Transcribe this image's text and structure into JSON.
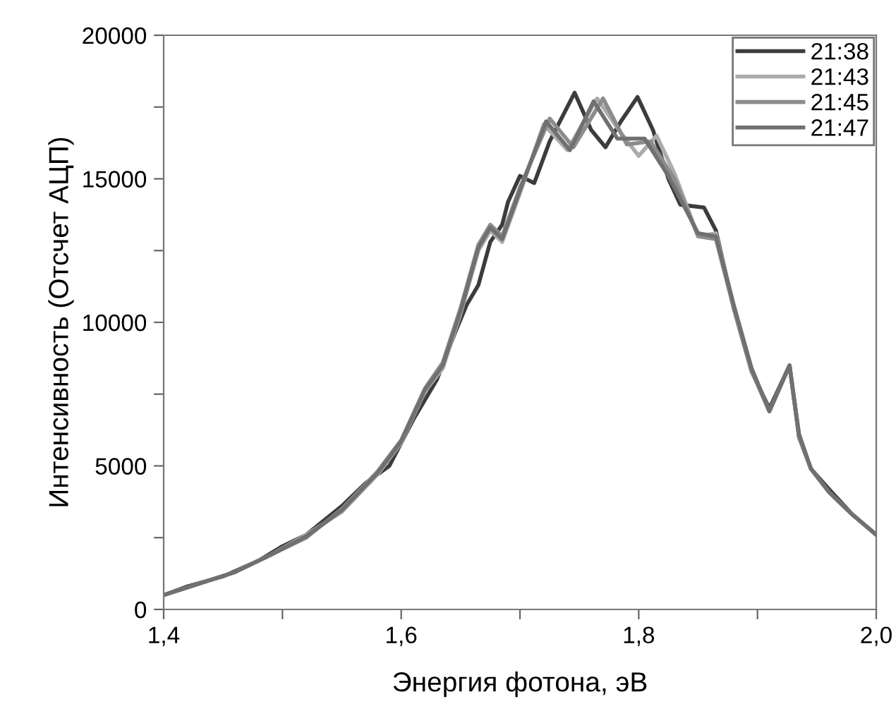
{
  "chart_data": {
    "type": "line",
    "xlabel": "Энергия фотона, эВ",
    "ylabel": "Интенсивность (Отсчет АЦП)",
    "xlim": [
      1.4,
      2.0
    ],
    "ylim": [
      0,
      20000
    ],
    "xticks": [
      {
        "value": 1.4,
        "label": "1,4"
      },
      {
        "value": 1.5,
        "label": null
      },
      {
        "value": 1.6,
        "label": "1,6"
      },
      {
        "value": 1.7,
        "label": null
      },
      {
        "value": 1.8,
        "label": "1,8"
      },
      {
        "value": 1.9,
        "label": null
      },
      {
        "value": 2.0,
        "label": "2,0"
      }
    ],
    "yticks": [
      0,
      {
        "value": 2500,
        "label": null
      },
      5000,
      {
        "value": 7500,
        "label": null
      },
      10000,
      {
        "value": 12500,
        "label": null
      },
      15000,
      {
        "value": 17500,
        "label": null
      },
      20000
    ],
    "grid": false,
    "legend": "top right",
    "marker": "none",
    "line_style": "solid",
    "series": [
      {
        "name": "21:38",
        "color": "#3c3c3c",
        "x": [
          1.4,
          1.42,
          1.45,
          1.48,
          1.5,
          1.52,
          1.55,
          1.57,
          1.59,
          1.61,
          1.63,
          1.645,
          1.655,
          1.665,
          1.675,
          1.685,
          1.69,
          1.7,
          1.712,
          1.725,
          1.746,
          1.76,
          1.772,
          1.785,
          1.799,
          1.812,
          1.825,
          1.835,
          1.855,
          1.865,
          1.88,
          1.895,
          1.91,
          1.927,
          1.935,
          1.945,
          1.96,
          1.98,
          2.0
        ],
        "values": [
          500,
          800,
          1150,
          1700,
          2200,
          2600,
          3600,
          4400,
          5000,
          6600,
          8000,
          9600,
          10600,
          11300,
          12800,
          13400,
          14200,
          15100,
          14850,
          16300,
          18000,
          16700,
          16100,
          17000,
          17850,
          16700,
          15000,
          14100,
          14000,
          13200,
          10500,
          8300,
          7000,
          8500,
          6000,
          4900,
          4200,
          3300,
          2600
        ]
      },
      {
        "name": "21:43",
        "color": "#ababab",
        "x": [
          1.4,
          1.43,
          1.46,
          1.49,
          1.52,
          1.55,
          1.58,
          1.6,
          1.62,
          1.635,
          1.65,
          1.665,
          1.675,
          1.685,
          1.7,
          1.72,
          1.74,
          1.765,
          1.785,
          1.8,
          1.815,
          1.83,
          1.85,
          1.865,
          1.88,
          1.895,
          1.91,
          1.927,
          1.935,
          1.945,
          1.96,
          1.98,
          2.0
        ],
        "values": [
          500,
          900,
          1300,
          1900,
          2600,
          3400,
          4700,
          5800,
          7600,
          8400,
          10300,
          12500,
          13200,
          12800,
          14500,
          16900,
          16000,
          17800,
          16600,
          15800,
          16500,
          15200,
          13000,
          13100,
          10600,
          8400,
          6900,
          8500,
          6100,
          4900,
          4100,
          3300,
          2600
        ]
      },
      {
        "name": "21:45",
        "color": "#8c8c8c",
        "x": [
          1.4,
          1.43,
          1.46,
          1.49,
          1.52,
          1.55,
          1.58,
          1.6,
          1.62,
          1.635,
          1.65,
          1.665,
          1.675,
          1.685,
          1.7,
          1.725,
          1.745,
          1.77,
          1.79,
          1.81,
          1.83,
          1.85,
          1.865,
          1.88,
          1.895,
          1.91,
          1.927,
          1.935,
          1.945,
          1.96,
          1.98,
          2.0
        ],
        "values": [
          500,
          900,
          1300,
          1900,
          2500,
          3500,
          4800,
          5900,
          7700,
          8600,
          10500,
          12700,
          13400,
          13000,
          14700,
          17100,
          16100,
          17800,
          16200,
          16300,
          15000,
          13000,
          12900,
          10500,
          8300,
          6900,
          8500,
          6000,
          4900,
          4100,
          3300,
          2600
        ]
      },
      {
        "name": "21:47",
        "color": "#707070",
        "x": [
          1.4,
          1.43,
          1.46,
          1.49,
          1.52,
          1.55,
          1.58,
          1.6,
          1.62,
          1.635,
          1.65,
          1.665,
          1.675,
          1.685,
          1.7,
          1.722,
          1.742,
          1.762,
          1.782,
          1.805,
          1.825,
          1.85,
          1.865,
          1.88,
          1.895,
          1.91,
          1.927,
          1.935,
          1.945,
          1.96,
          1.98,
          2.0
        ],
        "values": [
          500,
          900,
          1300,
          1900,
          2550,
          3450,
          4750,
          5850,
          7650,
          8500,
          10400,
          12600,
          13300,
          12900,
          14600,
          17000,
          16000,
          17700,
          16400,
          16400,
          15100,
          13100,
          13000,
          10600,
          8400,
          6900,
          8500,
          6100,
          4900,
          4100,
          3300,
          2600
        ]
      }
    ]
  }
}
